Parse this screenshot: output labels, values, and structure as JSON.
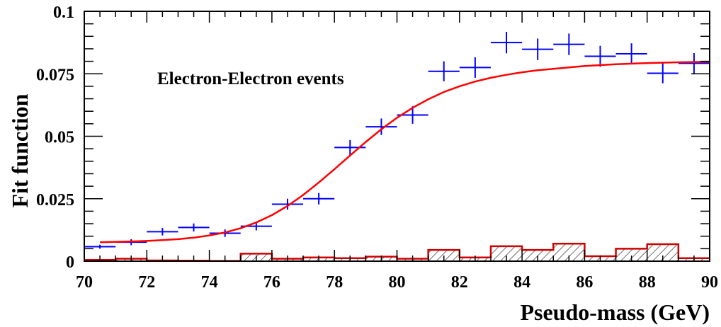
{
  "chart_data": {
    "type": "scatter",
    "xlabel": "Pseudo-mass (GeV)",
    "ylabel": "Fit function",
    "xlim": [
      70,
      90
    ],
    "ylim": [
      0,
      0.1
    ],
    "grid": false,
    "legend": "none",
    "x_ticks": [
      "70",
      "72",
      "74",
      "76",
      "78",
      "80",
      "82",
      "84",
      "86",
      "88",
      "90"
    ],
    "y_ticks": [
      "0",
      "0.025",
      "0.05",
      "0.075",
      "0.1"
    ],
    "annotation": "Electron-Electron events",
    "colors": {
      "points": "#0000ff",
      "fit": "#ff0000",
      "hist_line": "#d00000",
      "hatch": "#404040"
    },
    "series": [
      {
        "kind": "points_with_errors",
        "x": [
          70.5,
          71.5,
          72.5,
          73.5,
          74.5,
          75.5,
          76.5,
          77.5,
          78.5,
          79.5,
          80.5,
          81.5,
          82.5,
          83.5,
          84.5,
          85.5,
          86.5,
          87.5,
          88.5,
          89.5
        ],
        "x_err": 0.5,
        "y": [
          0.0058,
          0.0076,
          0.0118,
          0.0135,
          0.0112,
          0.014,
          0.0228,
          0.025,
          0.0455,
          0.0538,
          0.0585,
          0.076,
          0.0775,
          0.0875,
          0.0848,
          0.0868,
          0.082,
          0.083,
          0.0752,
          0.0792
        ],
        "y_err": [
          0.0008,
          0.0012,
          0.0015,
          0.0016,
          0.0015,
          0.0017,
          0.0022,
          0.0023,
          0.003,
          0.0033,
          0.0035,
          0.004,
          0.0041,
          0.0043,
          0.0043,
          0.0043,
          0.0042,
          0.0042,
          0.004,
          0.0041
        ]
      },
      {
        "kind": "fit_curve",
        "x": [
          70.5,
          71.0,
          71.5,
          72.0,
          72.5,
          73.0,
          73.5,
          74.0,
          74.5,
          75.0,
          75.5,
          76.0,
          76.5,
          77.0,
          77.5,
          78.0,
          78.5,
          79.0,
          79.5,
          80.0,
          80.5,
          81.0,
          81.5,
          82.0,
          82.5,
          83.0,
          83.5,
          84.0,
          84.5,
          85.0,
          86.0,
          87.0,
          88.0,
          89.0,
          90.0
        ],
        "y": [
          0.0076,
          0.0077,
          0.0079,
          0.0081,
          0.0084,
          0.0088,
          0.0094,
          0.0103,
          0.0115,
          0.0132,
          0.0155,
          0.0184,
          0.0221,
          0.0265,
          0.0315,
          0.0368,
          0.0423,
          0.0477,
          0.0528,
          0.0574,
          0.0614,
          0.0648,
          0.0677,
          0.07,
          0.0719,
          0.0734,
          0.0746,
          0.0756,
          0.0764,
          0.077,
          0.0781,
          0.0788,
          0.0793,
          0.0796,
          0.0798
        ]
      },
      {
        "kind": "hatched_histogram",
        "bin_edges": [
          70,
          71,
          72,
          73,
          74,
          75,
          76,
          77,
          78,
          79,
          80,
          81,
          82,
          83,
          84,
          85,
          86,
          87,
          88,
          89,
          90
        ],
        "values": [
          0.0005,
          0.001,
          0.0003,
          0.0002,
          0.0001,
          0.003,
          0.001,
          0.0015,
          0.0012,
          0.0018,
          0.001,
          0.0045,
          0.0015,
          0.006,
          0.0045,
          0.007,
          0.002,
          0.005,
          0.0068,
          0.0012
        ]
      }
    ]
  }
}
